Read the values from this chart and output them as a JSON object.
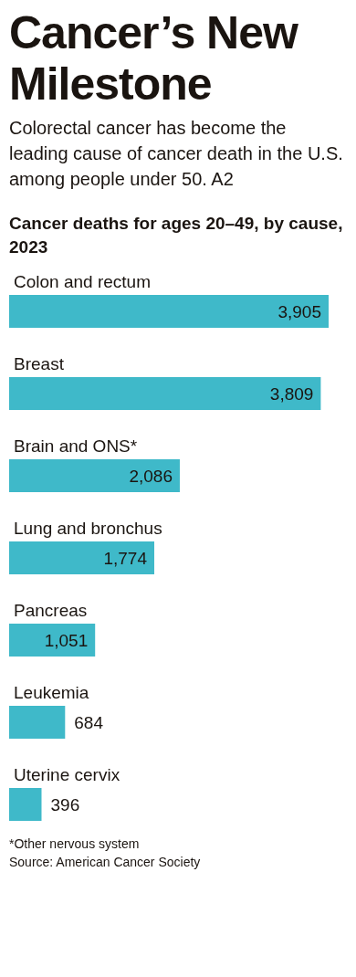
{
  "chart_data": {
    "type": "bar",
    "orientation": "horizontal",
    "title": "Cancer’s New Milestone",
    "subtitle": "Colorectal cancer has become the leading cause of cancer death in the U.S. among people under 50. A2",
    "categories": [
      "Colon and rectum",
      "Breast",
      "Brain and ONS*",
      "Lung and bronchus",
      "Pancreas",
      "Leukemia",
      "Uterine cervix"
    ],
    "values": [
      3905,
      3809,
      2086,
      1774,
      1051,
      684,
      396
    ],
    "color": "#3fb9c9",
    "value_labels": [
      "3,905",
      "3,809",
      "2,086",
      "1,774",
      "1,051",
      "684",
      "396"
    ],
    "annotations": [
      "Cancer deaths for ages 20–49, by cause, 2023",
      "*Other nervous system",
      "Source: American Cancer Society"
    ]
  }
}
